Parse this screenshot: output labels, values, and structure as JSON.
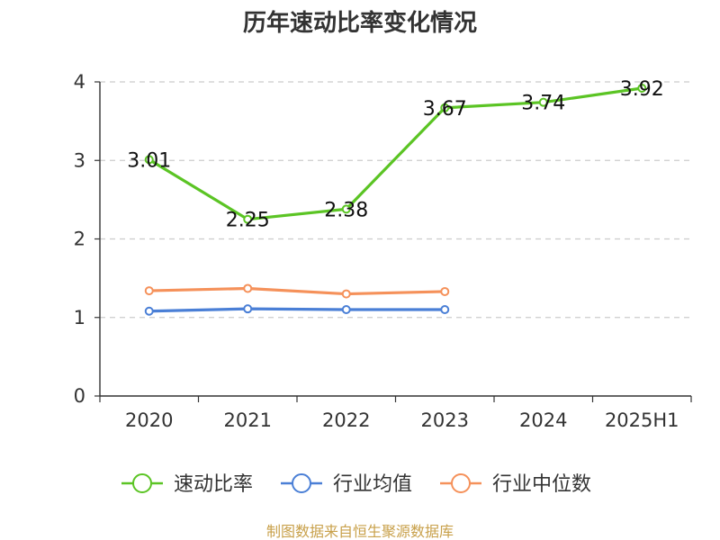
{
  "chart_data": {
    "type": "line",
    "title": "历年速动比率变化情况",
    "categories": [
      "2020",
      "2021",
      "2022",
      "2023",
      "2024",
      "2025H1"
    ],
    "ylim": [
      0,
      4
    ],
    "yticks": [
      "0",
      "1",
      "2",
      "3",
      "4"
    ],
    "grid": true,
    "legend_position": "bottom",
    "series": [
      {
        "name": "速动比率",
        "color": "#5bc424",
        "values": [
          3.01,
          2.25,
          2.38,
          3.67,
          3.74,
          3.92
        ],
        "labels": [
          "3.01",
          "2.25",
          "2.38",
          "3.67",
          "3.74",
          "3.92"
        ],
        "show_labels": true
      },
      {
        "name": "行业均值",
        "color": "#4a7fd6",
        "values": [
          1.08,
          1.11,
          1.1,
          1.1,
          null,
          null
        ],
        "show_labels": false
      },
      {
        "name": "行业中位数",
        "color": "#f5915a",
        "values": [
          1.34,
          1.37,
          1.3,
          1.33,
          null,
          null
        ],
        "show_labels": false
      }
    ]
  },
  "source": "制图数据来自恒生聚源数据库"
}
